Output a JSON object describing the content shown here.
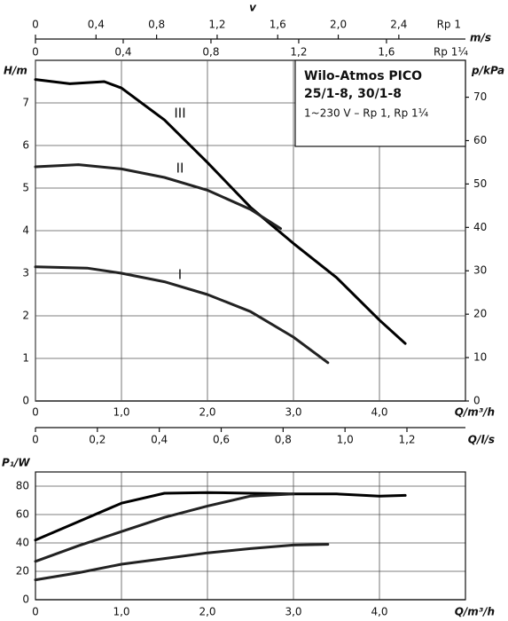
{
  "chart_data": [
    {
      "type": "line",
      "title": "Wilo-Atmos PICO",
      "subtitle": "25/1-8, 30/1-8",
      "annotation": "1~230 V – Rp 1, Rp 1¼",
      "x2title": "v",
      "x2axes": [
        {
          "name": "Rp 1",
          "label": "m/s",
          "xlim": [
            0,
            2.84
          ],
          "xticks": [
            0,
            {
              "value": 0.4,
              "label": "0,4"
            },
            {
              "value": 0.8,
              "label": "0,8"
            },
            {
              "value": 1.2,
              "label": "1,2"
            },
            {
              "value": 1.6,
              "label": "1,6"
            },
            {
              "value": 2.0,
              "label": "2,0"
            },
            {
              "value": 2.4,
              "label": "2,4"
            }
          ]
        },
        {
          "name": "Rp 1¼",
          "xlim": [
            0,
            1.96
          ],
          "xticks": [
            0,
            {
              "value": 0.4,
              "label": "0,4"
            },
            {
              "value": 0.8,
              "label": "0,8"
            },
            {
              "value": 1.2,
              "label": "1,2"
            },
            {
              "value": 1.6,
              "label": "1,6"
            }
          ]
        }
      ],
      "xlabel": "Q/m³/h",
      "xlim": [
        0,
        5
      ],
      "xticks": [
        0,
        {
          "value": 1,
          "label": "1,0"
        },
        {
          "value": 2,
          "label": "2,0"
        },
        {
          "value": 3,
          "label": "3,0"
        },
        {
          "value": 4,
          "label": "4,0"
        }
      ],
      "ylabel": "H/m",
      "ylim": [
        0,
        8
      ],
      "yticks": [
        0,
        1,
        2,
        3,
        4,
        5,
        6,
        7
      ],
      "y2label": "p/kPa",
      "y2lim": [
        0,
        78.5
      ],
      "y2ticks": [
        0,
        10,
        20,
        30,
        40,
        50,
        60,
        70
      ],
      "grid": true,
      "series": [
        {
          "name": "III",
          "color": "#000000",
          "x": [
            0,
            0.4,
            0.8,
            1.0,
            1.5,
            2.0,
            2.5,
            3.0,
            3.5,
            4.0,
            4.3
          ],
          "values": [
            7.55,
            7.45,
            7.5,
            7.35,
            6.6,
            5.6,
            4.55,
            3.7,
            2.9,
            1.9,
            1.35
          ]
        },
        {
          "name": "II",
          "color": "#222222",
          "x": [
            0,
            0.5,
            1.0,
            1.5,
            2.0,
            2.5,
            2.85
          ],
          "values": [
            5.5,
            5.55,
            5.45,
            5.25,
            4.95,
            4.5,
            4.05
          ]
        },
        {
          "name": "I",
          "color": "#222222",
          "x": [
            0,
            0.6,
            1.0,
            1.5,
            2.0,
            2.5,
            3.0,
            3.4
          ],
          "values": [
            3.15,
            3.12,
            3.0,
            2.8,
            2.5,
            2.1,
            1.5,
            0.9
          ]
        }
      ]
    },
    {
      "type": "line",
      "x2label": "Q/l/s",
      "x2lim": [
        0,
        1.389
      ],
      "x2ticks": [
        0,
        {
          "value": 0.2,
          "label": "0,2"
        },
        {
          "value": 0.4,
          "label": "0,4"
        },
        {
          "value": 0.6,
          "label": "0,6"
        },
        {
          "value": 0.8,
          "label": "0,8"
        },
        {
          "value": 1.0,
          "label": "1,0"
        },
        {
          "value": 1.2,
          "label": "1,2"
        }
      ],
      "xlabel": "Q/m³/h",
      "xlim": [
        0,
        5
      ],
      "xticks": [
        0,
        {
          "value": 1,
          "label": "1,0"
        },
        {
          "value": 2,
          "label": "2,0"
        },
        {
          "value": 3,
          "label": "3,0"
        },
        {
          "value": 4,
          "label": "4,0"
        }
      ],
      "ylabel": "P₁/W",
      "ylim": [
        0,
        90
      ],
      "yticks": [
        0,
        20,
        40,
        60,
        80
      ],
      "grid": true,
      "series": [
        {
          "color": "#000000",
          "x": [
            0,
            0.5,
            1.0,
            1.5,
            2.0,
            2.5,
            3.0,
            3.5,
            4.0,
            4.3
          ],
          "values": [
            42,
            55,
            68,
            75,
            75.5,
            75,
            74.5,
            74.5,
            73,
            73.5
          ]
        },
        {
          "color": "#222222",
          "x": [
            0,
            0.5,
            1.0,
            1.5,
            2.0,
            2.5,
            3.0
          ],
          "values": [
            27,
            38,
            48,
            58,
            66,
            73,
            74.5
          ]
        },
        {
          "color": "#222222",
          "x": [
            0,
            0.5,
            1.0,
            1.5,
            2.0,
            2.5,
            3.0,
            3.4
          ],
          "values": [
            14,
            19,
            25,
            29,
            33,
            36,
            38.5,
            39
          ]
        }
      ]
    }
  ]
}
